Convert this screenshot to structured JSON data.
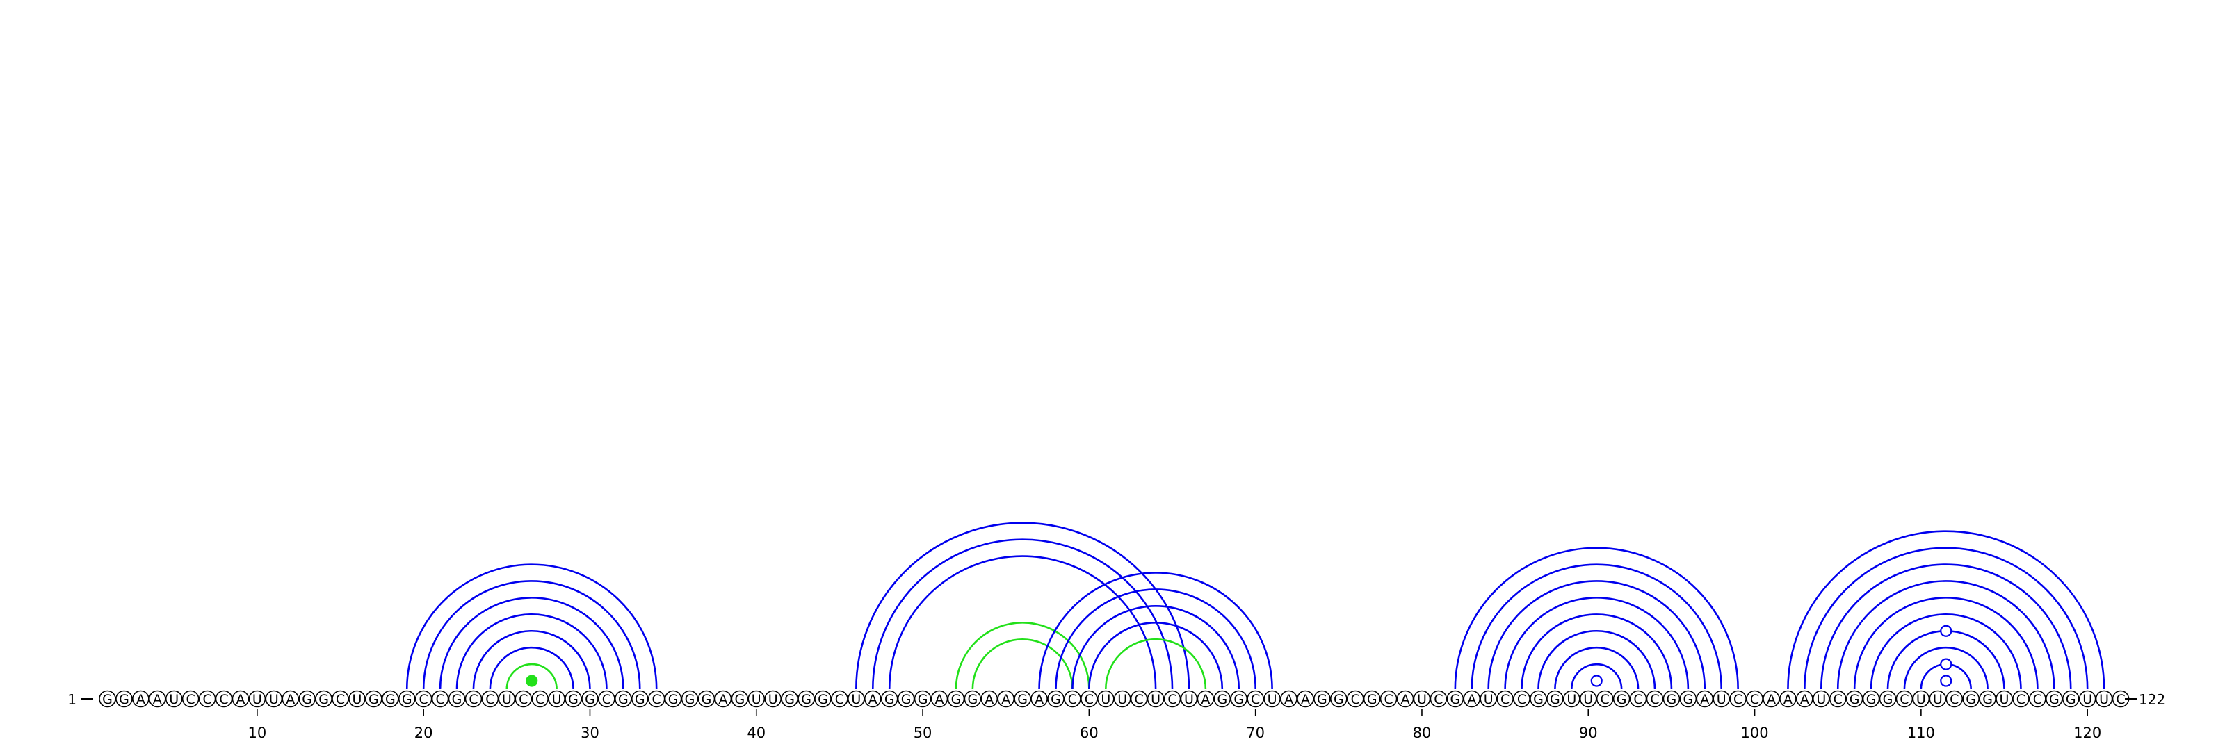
{
  "sequence": "GGAAUCCCAUUAGGCUGGGCCGCCUCCUGGCGGCGGGAGUUGGGCUAGGGAGGAAGAGCCUUCUCUAGGCUAAGGCGCAUCGAUCCGGUUCGCCGGAUCCAAAUCGGGCUUCGGUCCGGUUC",
  "length": 122,
  "start_label": "1",
  "end_label": "122",
  "tick_labels": [
    "10",
    "20",
    "30",
    "40",
    "50",
    "60",
    "70",
    "80",
    "90",
    "100",
    "110",
    "120"
  ],
  "colors": {
    "blue": "#0000ee",
    "green": "#22e01a"
  },
  "arcs": [
    {
      "i": 19,
      "j": 34,
      "color": "blue"
    },
    {
      "i": 20,
      "j": 33,
      "color": "blue"
    },
    {
      "i": 21,
      "j": 32,
      "color": "blue"
    },
    {
      "i": 22,
      "j": 31,
      "color": "blue"
    },
    {
      "i": 23,
      "j": 30,
      "color": "blue"
    },
    {
      "i": 24,
      "j": 29,
      "color": "blue"
    },
    {
      "i": 25,
      "j": 28,
      "color": "green"
    },
    {
      "i": 46,
      "j": 66,
      "color": "blue"
    },
    {
      "i": 47,
      "j": 65,
      "color": "blue"
    },
    {
      "i": 48,
      "j": 64,
      "color": "blue"
    },
    {
      "i": 52,
      "j": 60,
      "color": "green"
    },
    {
      "i": 53,
      "j": 59,
      "color": "green"
    },
    {
      "i": 57,
      "j": 71,
      "color": "blue"
    },
    {
      "i": 58,
      "j": 70,
      "color": "blue"
    },
    {
      "i": 59,
      "j": 69,
      "color": "blue"
    },
    {
      "i": 60,
      "j": 68,
      "color": "blue"
    },
    {
      "i": 61,
      "j": 67,
      "color": "green"
    },
    {
      "i": 82,
      "j": 99,
      "color": "blue"
    },
    {
      "i": 83,
      "j": 98,
      "color": "blue"
    },
    {
      "i": 84,
      "j": 97,
      "color": "blue"
    },
    {
      "i": 85,
      "j": 96,
      "color": "blue"
    },
    {
      "i": 86,
      "j": 95,
      "color": "blue"
    },
    {
      "i": 87,
      "j": 94,
      "color": "blue"
    },
    {
      "i": 88,
      "j": 93,
      "color": "blue"
    },
    {
      "i": 89,
      "j": 92,
      "color": "blue"
    },
    {
      "i": 102,
      "j": 121,
      "color": "blue"
    },
    {
      "i": 103,
      "j": 120,
      "color": "blue"
    },
    {
      "i": 104,
      "j": 119,
      "color": "blue"
    },
    {
      "i": 105,
      "j": 118,
      "color": "blue"
    },
    {
      "i": 106,
      "j": 117,
      "color": "blue"
    },
    {
      "i": 107,
      "j": 116,
      "color": "blue"
    },
    {
      "i": 108,
      "j": 115,
      "color": "blue"
    },
    {
      "i": 109,
      "j": 114,
      "color": "blue"
    },
    {
      "i": 110,
      "j": 113,
      "color": "blue"
    }
  ],
  "markers": [
    {
      "pos": 26.5,
      "color": "green",
      "filled": true,
      "level": 1
    },
    {
      "pos": 90.5,
      "color": "blue",
      "filled": false,
      "level": 1
    },
    {
      "pos": 111.5,
      "color": "blue",
      "filled": false,
      "level": 1
    },
    {
      "pos": 111.5,
      "color": "blue",
      "filled": false,
      "level": 2
    },
    {
      "pos": 111.5,
      "color": "blue",
      "filled": false,
      "level": 4
    }
  ]
}
